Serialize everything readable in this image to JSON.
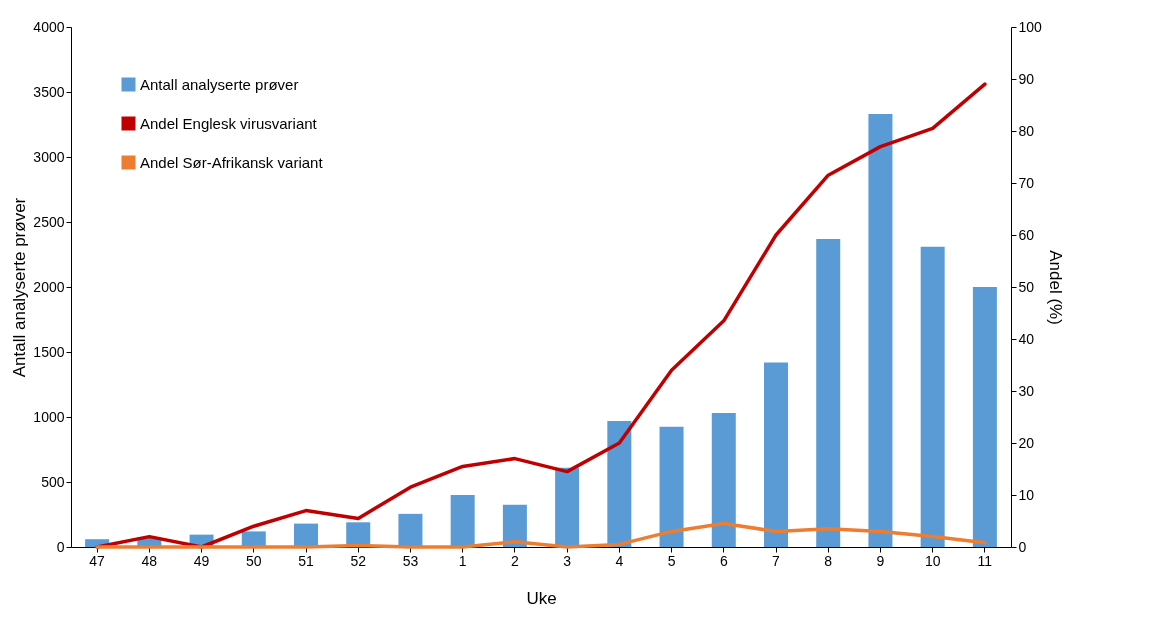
{
  "chart_data": {
    "type": "bar",
    "xlabel": "Uke",
    "ylabel": "Antall analyserte prøver",
    "y2label": "Andel (%)",
    "categories": [
      "47",
      "48",
      "49",
      "50",
      "51",
      "52",
      "53",
      "1",
      "2",
      "3",
      "4",
      "5",
      "6",
      "7",
      "8",
      "9",
      "10",
      "11"
    ],
    "series": [
      {
        "name": "Antall analyserte prøver",
        "color": "#5b9bd5",
        "values": [
          60,
          75,
          95,
          120,
          180,
          190,
          255,
          400,
          325,
          610,
          970,
          925,
          1030,
          1420,
          2370,
          3330,
          2310,
          2000
        ]
      },
      {
        "name": "Andel Englesk virusvariant",
        "type": "line",
        "axis": "y2",
        "color": "#c00000",
        "values": [
          0,
          2,
          0,
          4,
          7,
          5.5,
          11.5,
          15.5,
          17,
          14.5,
          20,
          34,
          43.5,
          60,
          71.5,
          77,
          80.5,
          89
        ]
      },
      {
        "name": "Andel Sør-Afrikansk variant",
        "type": "line",
        "axis": "y2",
        "color": "#ed7d31",
        "values": [
          0,
          0,
          0,
          0,
          0,
          0.3,
          0,
          0,
          1,
          0,
          0.5,
          3,
          4.5,
          3,
          3.5,
          3,
          2,
          0.8
        ]
      }
    ],
    "ylim": [
      0,
      4000
    ],
    "yticks": [
      0,
      500,
      1000,
      1500,
      2000,
      2500,
      3000,
      3500,
      4000
    ],
    "y2lim": [
      0,
      100
    ],
    "y2ticks": [
      0,
      10,
      20,
      30,
      40,
      50,
      60,
      70,
      80,
      90,
      100
    ],
    "grid": false,
    "legend": "top left"
  }
}
